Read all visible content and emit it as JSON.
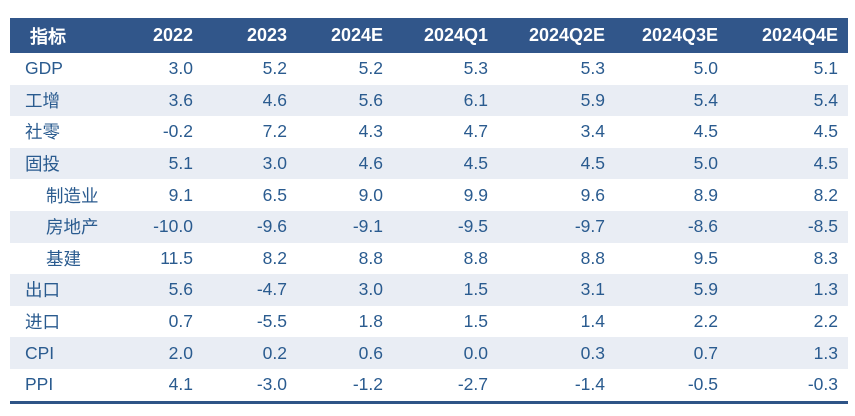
{
  "colors": {
    "header_bg": "#31568a",
    "stripe": "#e9edf4",
    "text": "#2a5b8f",
    "border": "#2e5487"
  },
  "table": {
    "header": [
      "指标",
      "2022",
      "2023",
      "2024E",
      "2024Q1",
      "2024Q2E",
      "2024Q3E",
      "2024Q4E"
    ],
    "rows": [
      {
        "label": "GDP",
        "indent": false,
        "values": [
          "3.0",
          "5.2",
          "5.2",
          "5.3",
          "5.3",
          "5.0",
          "5.1"
        ]
      },
      {
        "label": "工增",
        "indent": false,
        "values": [
          "3.6",
          "4.6",
          "5.6",
          "6.1",
          "5.9",
          "5.4",
          "5.4"
        ]
      },
      {
        "label": "社零",
        "indent": false,
        "values": [
          "-0.2",
          "7.2",
          "4.3",
          "4.7",
          "3.4",
          "4.5",
          "4.5"
        ]
      },
      {
        "label": "固投",
        "indent": false,
        "values": [
          "5.1",
          "3.0",
          "4.6",
          "4.5",
          "4.5",
          "5.0",
          "4.5"
        ]
      },
      {
        "label": "制造业",
        "indent": true,
        "values": [
          "9.1",
          "6.5",
          "9.0",
          "9.9",
          "9.6",
          "8.9",
          "8.2"
        ]
      },
      {
        "label": "房地产",
        "indent": true,
        "values": [
          "-10.0",
          "-9.6",
          "-9.1",
          "-9.5",
          "-9.7",
          "-8.6",
          "-8.5"
        ]
      },
      {
        "label": "基建",
        "indent": true,
        "values": [
          "11.5",
          "8.2",
          "8.8",
          "8.8",
          "8.8",
          "9.5",
          "8.3"
        ]
      },
      {
        "label": "出口",
        "indent": false,
        "values": [
          "5.6",
          "-4.7",
          "3.0",
          "1.5",
          "3.1",
          "5.9",
          "1.3"
        ]
      },
      {
        "label": "进口",
        "indent": false,
        "values": [
          "0.7",
          "-5.5",
          "1.8",
          "1.5",
          "1.4",
          "2.2",
          "2.2"
        ]
      },
      {
        "label": "CPI",
        "indent": false,
        "values": [
          "2.0",
          "0.2",
          "0.6",
          "0.0",
          "0.3",
          "0.7",
          "1.3"
        ]
      },
      {
        "label": "PPI",
        "indent": false,
        "values": [
          "4.1",
          "-3.0",
          "-1.2",
          "-2.7",
          "-1.4",
          "-0.5",
          "-0.3"
        ]
      }
    ]
  },
  "chart_data": {
    "type": "table",
    "title": "",
    "columns": [
      "指标",
      "2022",
      "2023",
      "2024E",
      "2024Q1",
      "2024Q2E",
      "2024Q3E",
      "2024Q4E"
    ],
    "rows": [
      {
        "indicator": "GDP",
        "values": [
          3.0,
          5.2,
          5.2,
          5.3,
          5.3,
          5.0,
          5.1
        ]
      },
      {
        "indicator": "工增",
        "values": [
          3.6,
          4.6,
          5.6,
          6.1,
          5.9,
          5.4,
          5.4
        ]
      },
      {
        "indicator": "社零",
        "values": [
          -0.2,
          7.2,
          4.3,
          4.7,
          3.4,
          4.5,
          4.5
        ]
      },
      {
        "indicator": "固投",
        "values": [
          5.1,
          3.0,
          4.6,
          4.5,
          4.5,
          5.0,
          4.5
        ]
      },
      {
        "indicator": "固投-制造业",
        "values": [
          9.1,
          6.5,
          9.0,
          9.9,
          9.6,
          8.9,
          8.2
        ]
      },
      {
        "indicator": "固投-房地产",
        "values": [
          -10.0,
          -9.6,
          -9.1,
          -9.5,
          -9.7,
          -8.6,
          -8.5
        ]
      },
      {
        "indicator": "固投-基建",
        "values": [
          11.5,
          8.2,
          8.8,
          8.8,
          8.8,
          9.5,
          8.3
        ]
      },
      {
        "indicator": "出口",
        "values": [
          5.6,
          -4.7,
          3.0,
          1.5,
          3.1,
          5.9,
          1.3
        ]
      },
      {
        "indicator": "进口",
        "values": [
          0.7,
          -5.5,
          1.8,
          1.5,
          1.4,
          2.2,
          2.2
        ]
      },
      {
        "indicator": "CPI",
        "values": [
          2.0,
          0.2,
          0.6,
          0.0,
          0.3,
          0.7,
          1.3
        ]
      },
      {
        "indicator": "PPI",
        "values": [
          4.1,
          -3.0,
          -1.2,
          -2.7,
          -1.4,
          -0.5,
          -0.3
        ]
      }
    ]
  }
}
